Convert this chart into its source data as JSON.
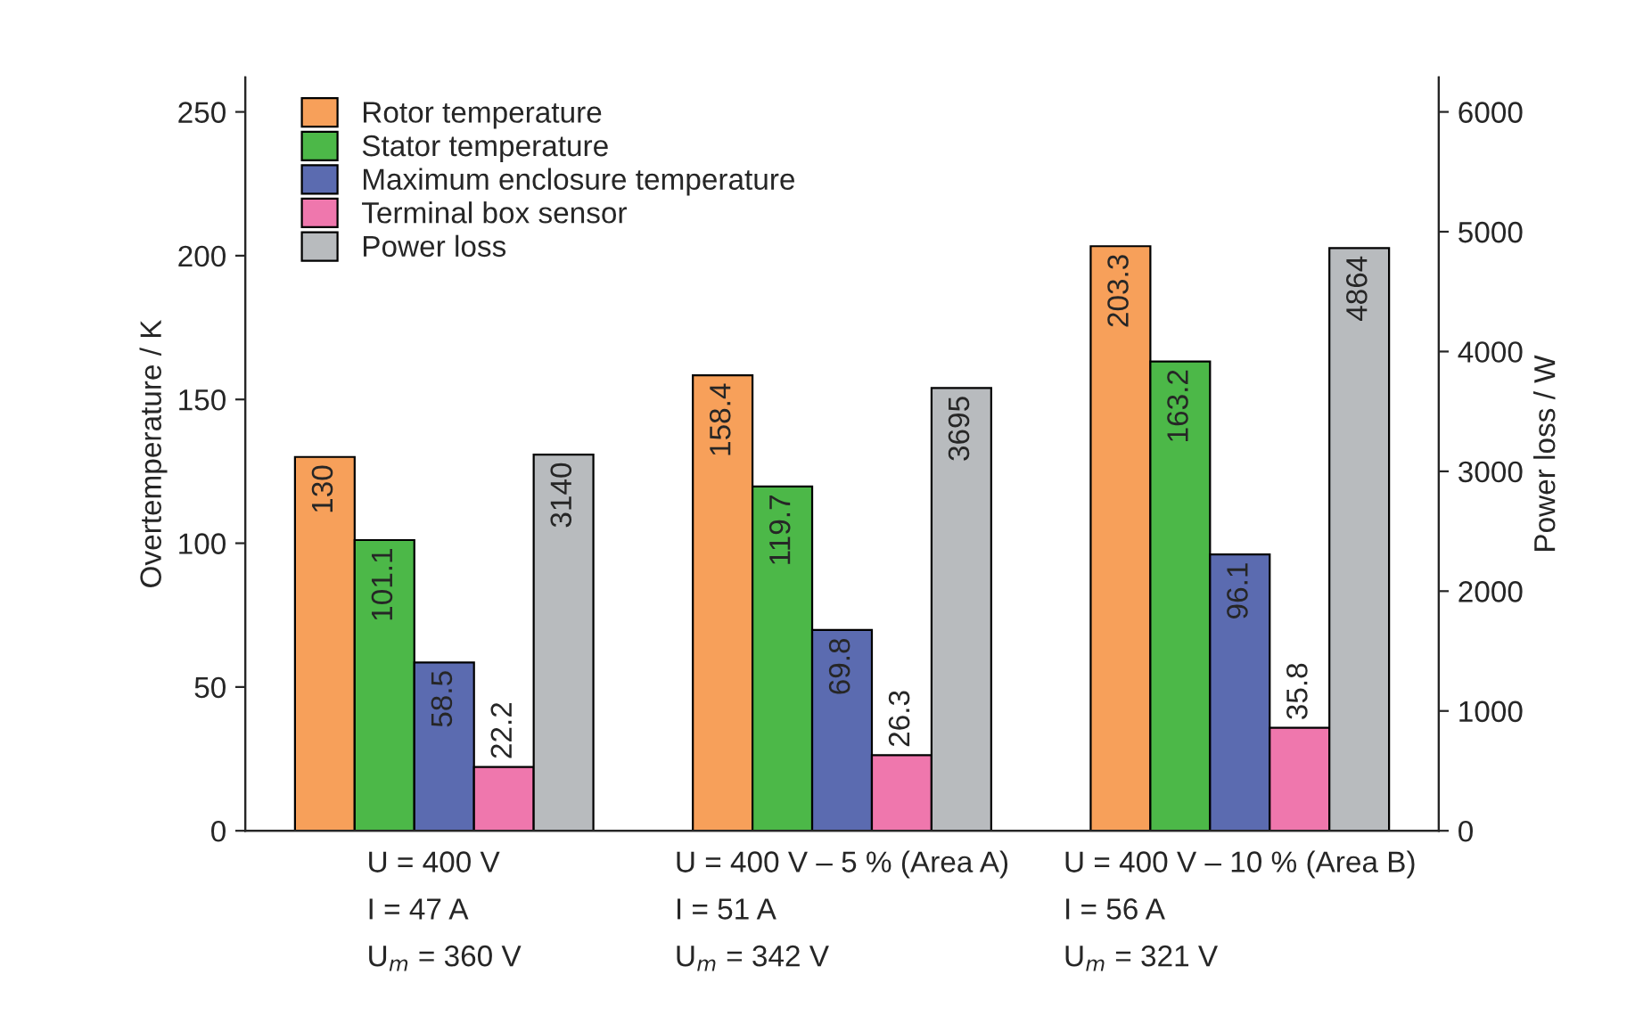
{
  "chart_data": {
    "type": "bar",
    "ylabel": "Overtemperature / K",
    "y2label": "Power loss / W",
    "categories": [
      "U = 400 V\nI = 47 A\nU$_{m}$ = 360 V",
      "U = 400 V – 5 % (Area A)\nI = 51 A\nU$_{m}$ = 342 V",
      "U = 400 V – 10 % (Area B)\nI = 56 A\nU$_{m}$ = 321 V"
    ],
    "series": [
      {
        "name": "Rotor temperature",
        "color": "#f7a05a",
        "values": [
          130,
          158.4,
          203.3
        ]
      },
      {
        "name": "Stator temperature",
        "color": "#4cb848",
        "values": [
          101.1,
          119.7,
          163.2
        ]
      },
      {
        "name": "Maximum enclosure temperature",
        "color": "#5b6bb0",
        "values": [
          58.5,
          69.8,
          96.1
        ]
      },
      {
        "name": "Terminal box sensor",
        "color": "#ef77ad",
        "values": [
          22.2,
          26.3,
          35.8
        ]
      },
      {
        "name": "Power loss",
        "color": "#b8bbbe",
        "axis": "y2",
        "values": [
          3140,
          3695,
          4864
        ]
      }
    ],
    "ylim": [
      0,
      262
    ],
    "yticks": [
      0,
      50,
      100,
      150,
      200,
      250
    ],
    "y2lim": [
      0,
      6288
    ],
    "y2ticks": [
      0,
      1000,
      2000,
      3000,
      4000,
      5000,
      6000
    ],
    "data_labels": true,
    "legend": "top left",
    "grid": false
  }
}
